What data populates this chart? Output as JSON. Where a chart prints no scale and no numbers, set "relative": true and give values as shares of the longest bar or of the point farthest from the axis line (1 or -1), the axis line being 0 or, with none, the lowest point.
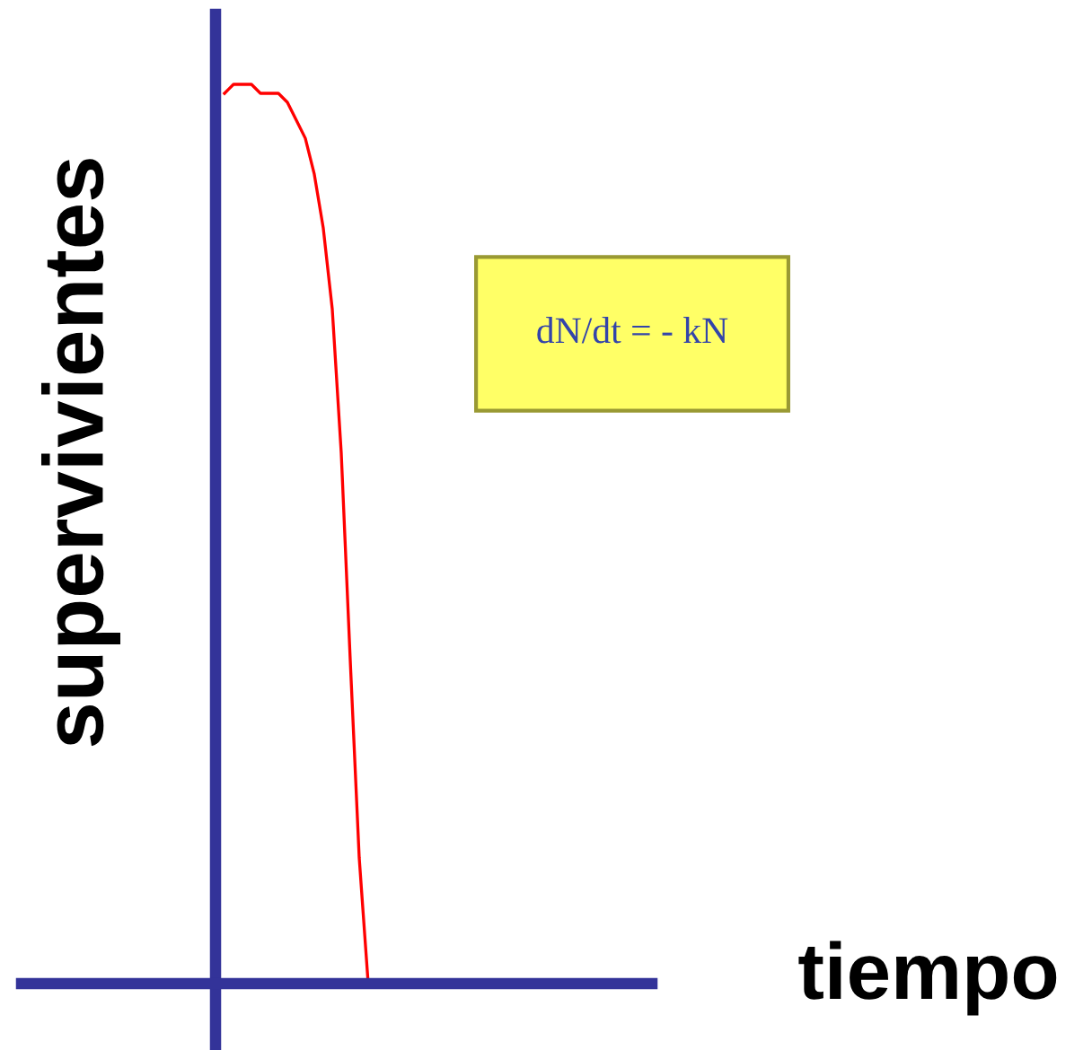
{
  "chart_data": {
    "type": "line",
    "relative": true,
    "ylabel": "supervivientes",
    "categories": [
      null,
      null,
      null,
      null,
      null,
      null,
      null,
      null,
      null,
      null,
      null,
      null,
      null,
      null,
      null,
      null,
      null
    ],
    "series": [
      {
        "color": "#ff0000",
        "values": [
          0.99,
          1.0,
          1.0,
          1.0,
          0.99,
          0.99,
          0.99,
          0.98,
          0.96,
          0.94,
          0.9,
          0.84,
          0.75,
          0.59,
          0.36,
          0.14,
          0.0
        ]
      }
    ],
    "annotations": [
      "dN/dt = - kN",
      "tiempo"
    ],
    "legend": false,
    "marker": "none",
    "line_style": "solid"
  }
}
